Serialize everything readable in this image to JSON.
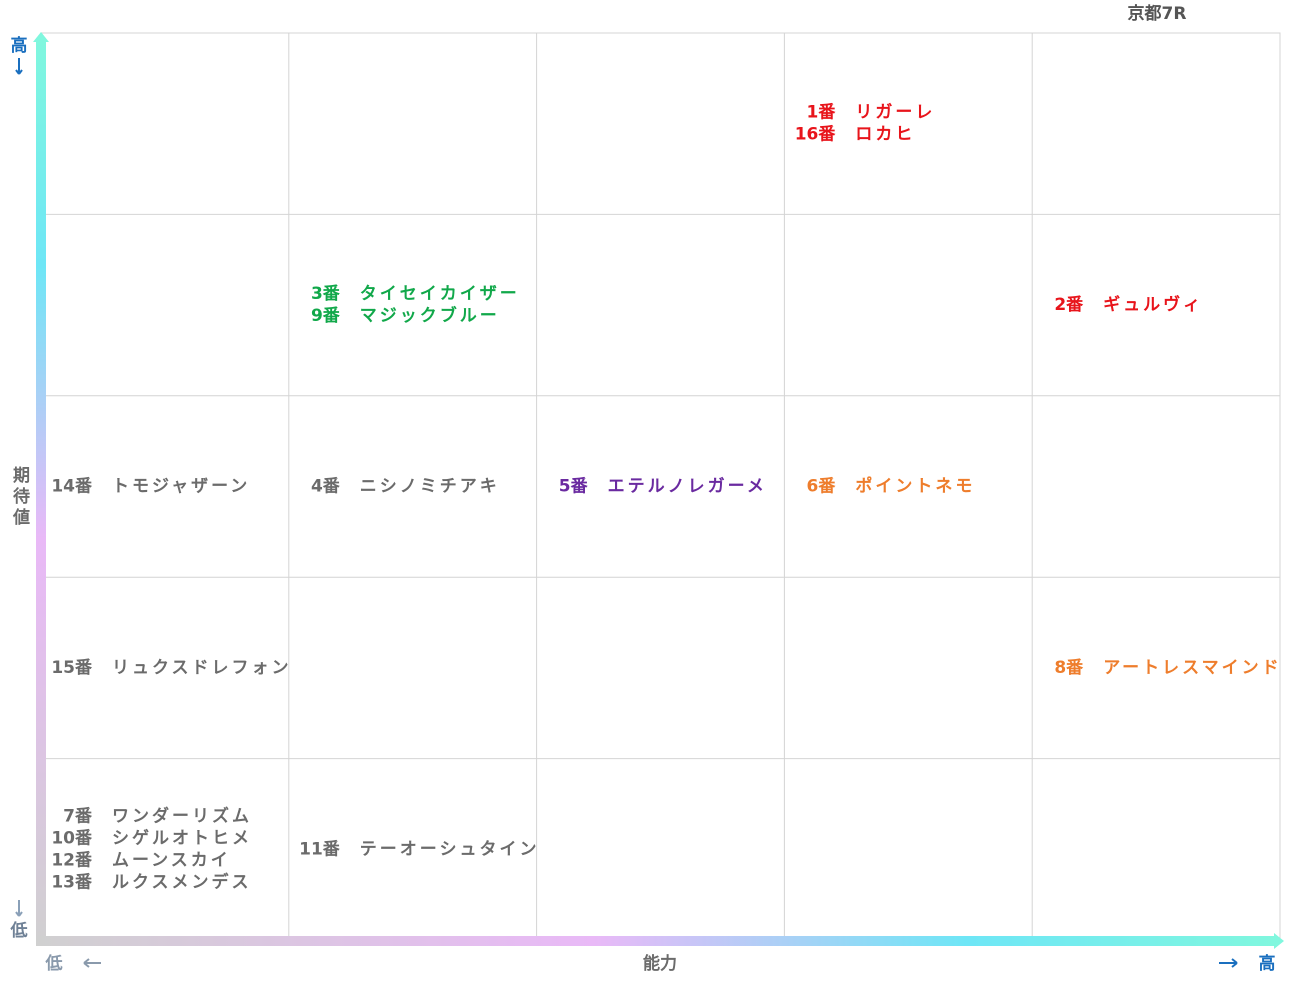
{
  "title": "京都7R",
  "y_axis": {
    "label": "期待値",
    "high": "高",
    "low": "低"
  },
  "x_axis": {
    "label": "能力",
    "high": "高",
    "low": "低"
  },
  "grid": {
    "rows": [
      [
        null,
        null,
        null,
        {
          "color": "#e8141b",
          "horses": [
            {
              "no": "1番",
              "name": "リガーレ"
            },
            {
              "no": "16番",
              "name": "ロカヒ"
            }
          ]
        },
        null
      ],
      [
        null,
        {
          "color": "#11a84a",
          "horses": [
            {
              "no": "3番",
              "name": "タイセイカイザー"
            },
            {
              "no": "9番",
              "name": "マジックブルー"
            }
          ]
        },
        null,
        null,
        {
          "color": "#e8141b",
          "horses": [
            {
              "no": "2番",
              "name": "ギュルヴィ"
            }
          ]
        }
      ],
      [
        {
          "color": "#6b6b6b",
          "horses": [
            {
              "no": "14番",
              "name": "トモジャザーン"
            }
          ]
        },
        {
          "color": "#6b6b6b",
          "horses": [
            {
              "no": "4番",
              "name": "ニシノミチアキ"
            }
          ]
        },
        {
          "color": "#6a2aa0",
          "horses": [
            {
              "no": "5番",
              "name": "エテルノレガーメ"
            }
          ]
        },
        {
          "color": "#ee7d2c",
          "horses": [
            {
              "no": "6番",
              "name": "ポイントネモ"
            }
          ]
        },
        null
      ],
      [
        {
          "color": "#6b6b6b",
          "horses": [
            {
              "no": "15番",
              "name": "リュクスドレフォン"
            }
          ]
        },
        null,
        null,
        null,
        {
          "color": "#ee7d2c",
          "horses": [
            {
              "no": "8番",
              "name": "アートレスマインド"
            }
          ]
        }
      ],
      [
        {
          "color": "#6b6b6b",
          "horses": [
            {
              "no": "7番",
              "name": "ワンダーリズム"
            },
            {
              "no": "10番",
              "name": "シゲルオトヒメ"
            },
            {
              "no": "12番",
              "name": "ムーンスカイ"
            },
            {
              "no": "13番",
              "name": "ルクスメンデス"
            }
          ]
        },
        {
          "color": "#6b6b6b",
          "horses": [
            {
              "no": "11番",
              "name": "テーオーシュタイン"
            }
          ]
        },
        null,
        null,
        null
      ]
    ]
  }
}
